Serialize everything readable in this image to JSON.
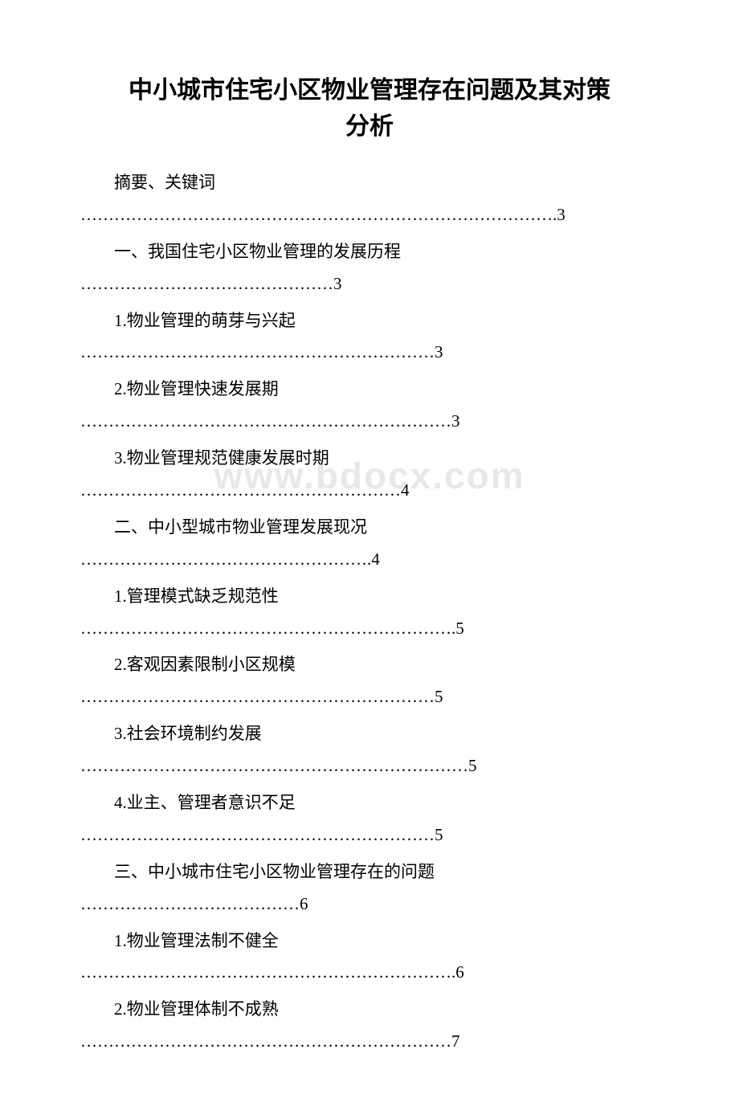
{
  "title_line1": "中小城市住宅小区物业管理存在问题及其对策",
  "title_line2": "分析",
  "title_fontsize": "30px",
  "body_fontsize": "21px",
  "text_color": "#000000",
  "watermark_text": "www.bdocx.com",
  "watermark_color": "#e8e8e8",
  "watermark_fontsize": "46px",
  "toc": [
    {
      "label": "摘要、关键词",
      "leader": "………………………………………………………………………….3"
    },
    {
      "label": "一、我国住宅小区物业管理的发展历程",
      "leader": "………………………………………3"
    },
    {
      "label": "1.物业管理的萌芽与兴起",
      "leader": "………………………………………………………3"
    },
    {
      "label": "2.物业管理快速发展期",
      "leader": "…………………………………………………………3"
    },
    {
      "label": "3.物业管理规范健康发展时期",
      "leader": "…………………………………………………4"
    },
    {
      "label": "二、中小型城市物业管理发展现况",
      "leader": "…………………………………………….4"
    },
    {
      "label": "1.管理模式缺乏规范性",
      "leader": "………………………………………………………….5"
    },
    {
      "label": "2.客观因素限制小区规模",
      "leader": "………………………………………………………5"
    },
    {
      "label": "3.社会环境制约发展",
      "leader": "……………………………………………………………5"
    },
    {
      "label": "4.业主、管理者意识不足",
      "leader": "………………………………………………………5"
    },
    {
      "label": "三、中小城市住宅小区物业管理存在的问题",
      "leader": "…………………………………6"
    },
    {
      "label": "1.物业管理法制不健全",
      "leader": "………………………………………………………….6"
    },
    {
      "label": "2.物业管理体制不成熟",
      "leader": "…………………………………………………………7"
    }
  ]
}
